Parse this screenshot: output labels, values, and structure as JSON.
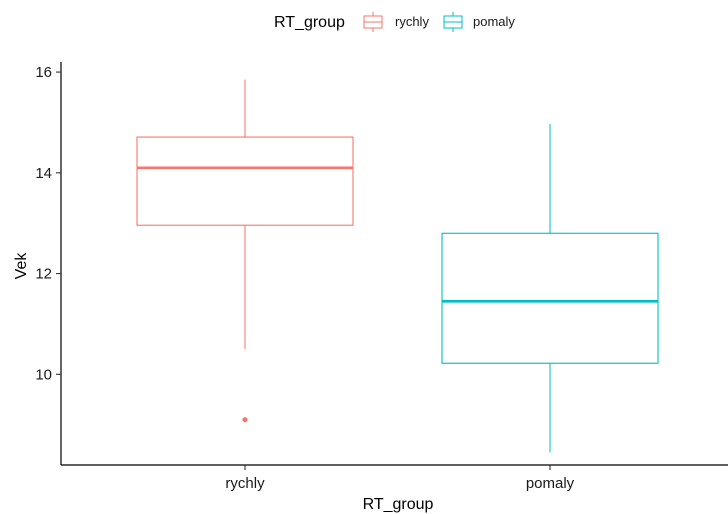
{
  "chart_data": {
    "type": "boxplot",
    "title": "",
    "xlabel": "RT_group",
    "ylabel": "Vek",
    "ylim": [
      8.2,
      16.2
    ],
    "yticks": [
      10,
      12,
      14,
      16
    ],
    "categories": [
      "rychly",
      "pomaly"
    ],
    "legend": {
      "title": "RT_group",
      "placement": "top",
      "entries": [
        "rychly",
        "pomaly"
      ]
    },
    "series": [
      {
        "name": "rychly",
        "color": "#F8766D",
        "whisker_low": 10.5,
        "q1": 12.96,
        "median": 14.1,
        "q3": 14.71,
        "whisker_high": 15.85,
        "outliers": [
          9.1
        ]
      },
      {
        "name": "pomaly",
        "color": "#00BFC4",
        "whisker_low": 8.45,
        "q1": 10.22,
        "median": 11.45,
        "q3": 12.8,
        "whisker_high": 14.97,
        "outliers": []
      }
    ]
  }
}
